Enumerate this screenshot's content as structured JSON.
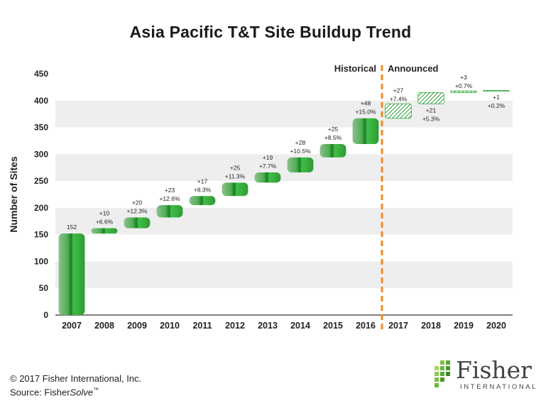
{
  "chart_data": {
    "type": "bar",
    "subtype": "waterfall",
    "title": "Asia Pacific T&T Site Buildup Trend",
    "ylabel": "Number of Sites",
    "ylim": [
      0,
      450
    ],
    "yticks": [
      0,
      50,
      100,
      150,
      200,
      250,
      300,
      350,
      400,
      450
    ],
    "grid": "alternating-bands",
    "categories": [
      "2007",
      "2008",
      "2009",
      "2010",
      "2011",
      "2012",
      "2013",
      "2014",
      "2015",
      "2016",
      "2017",
      "2018",
      "2019",
      "2020"
    ],
    "increments": [
      152,
      10,
      20,
      23,
      17,
      25,
      19,
      28,
      25,
      48,
      27,
      21,
      3,
      1
    ],
    "label_top": [
      "152",
      "+10",
      "+20",
      "+23",
      "+17",
      "+25",
      "+19",
      "+28",
      "+25",
      "+48",
      "+27",
      "+21",
      "+3",
      "+1"
    ],
    "label_pct": [
      "",
      "+6.6%",
      "+12.3%",
      "+12.6%",
      "+8.3%",
      "+11.3%",
      "+7.7%",
      "+10.5%",
      "+8.5%",
      "+15.0%",
      "+7.4%",
      "+5.3%",
      "+0.7%",
      "+0.2%"
    ],
    "historical_count": 10,
    "region_labels": {
      "historical": "Historical",
      "announced": "Announced"
    },
    "colors": {
      "bar": "#3cb043",
      "bar_dark": "#2a8a30",
      "divider": "#f08a24",
      "band": "#eeeeee"
    }
  },
  "footer": {
    "copyright": "© 2017 Fisher International, Inc.",
    "source_prefix": "Source: Fisher",
    "source_italic": "Solve",
    "source_tm": "™"
  },
  "logo": {
    "word": "Fisher",
    "sub": "INTERNATIONAL"
  }
}
